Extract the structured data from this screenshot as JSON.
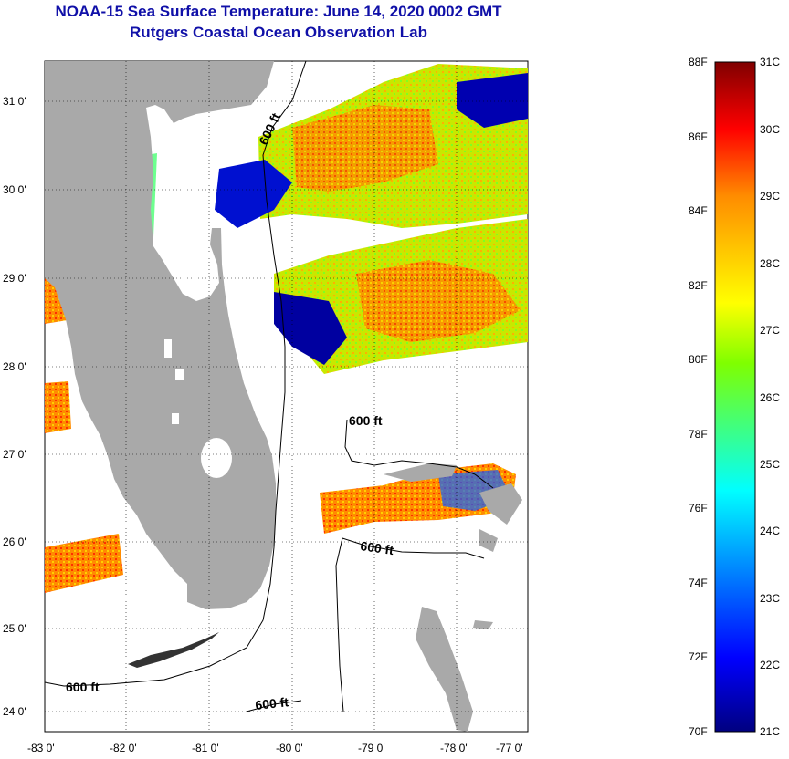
{
  "header": {
    "title": "NOAA-15 Sea Surface Temperature:  June 14, 2020 0002 GMT",
    "subtitle": "Rutgers Coastal Ocean Observation Lab"
  },
  "map": {
    "lat_ticks": [
      "31 0'",
      "30 0'",
      "29 0'",
      "28 0'",
      "27 0'",
      "26 0'",
      "25 0'",
      "24 0'"
    ],
    "lon_ticks": [
      "-83 0'",
      "-82 0'",
      "-81 0'",
      "-80 0'",
      "-79 0'",
      "-78 0'",
      "-77 0'"
    ],
    "contour_labels": [
      "600 ft",
      "600 ft",
      "600 ft",
      "600 ft",
      "600 ft"
    ],
    "colors": {
      "land": "#a9a9a9",
      "background": "#ffffff"
    }
  },
  "colorbar": {
    "fahrenheit_labels": [
      "88F",
      "86F",
      "84F",
      "82F",
      "80F",
      "78F",
      "76F",
      "74F",
      "72F",
      "70F"
    ],
    "celsius_labels": [
      "31C",
      "30C",
      "29C",
      "28C",
      "27C",
      "26C",
      "25C",
      "24C",
      "23C",
      "22C",
      "21C"
    ],
    "colors": {
      "hot": "#800000",
      "red": "#ff0000",
      "orange": "#ff8c00",
      "yellow": "#ffff00",
      "green": "#7fff00",
      "cyan": "#00ffff",
      "blue": "#0000ff",
      "cold": "#000080"
    }
  }
}
